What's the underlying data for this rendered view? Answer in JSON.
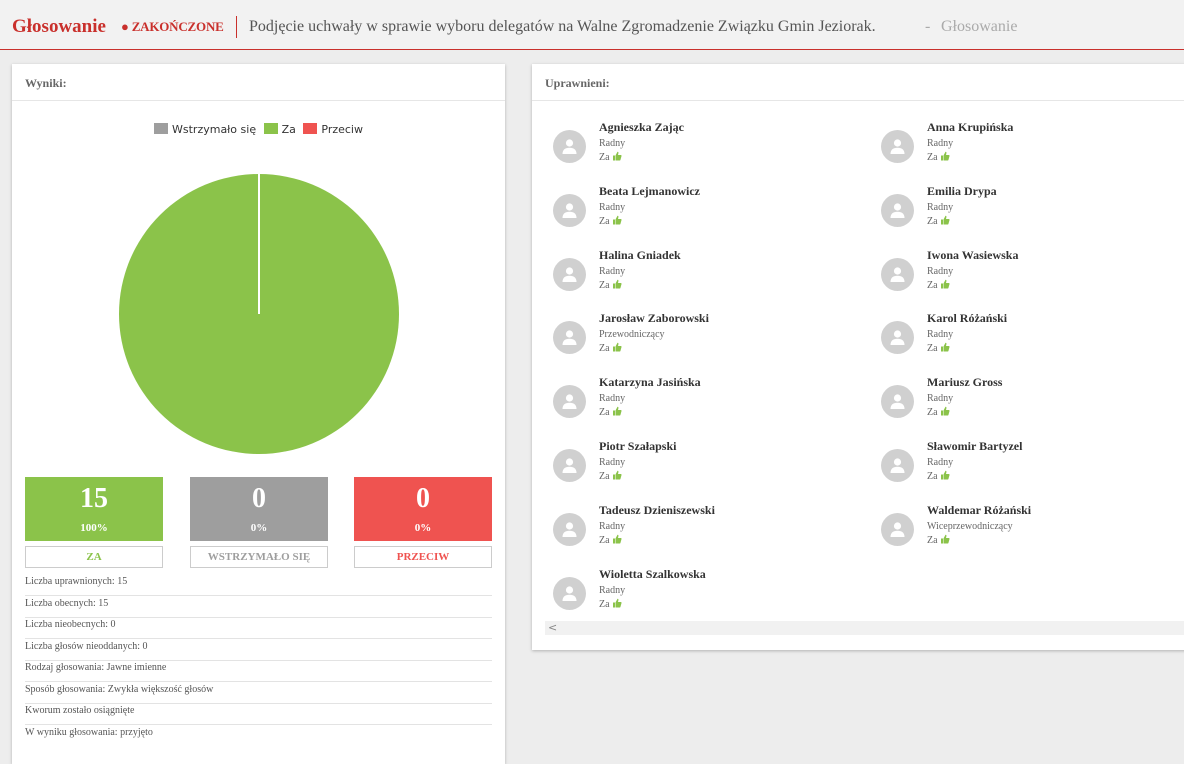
{
  "header": {
    "title": "Głosowanie",
    "status": "● ZAKOŃCZONE",
    "subject": "Podjęcie uchwały w sprawie wyboru delegatów na Walne Zgromadzenie Związku Gmin Jeziorak.",
    "separator": "-",
    "breadcrumb": "Głosowanie"
  },
  "results": {
    "heading": "Wyniki:",
    "legend": [
      {
        "label": "Wstrzymało się",
        "color": "#9e9e9e"
      },
      {
        "label": "Za",
        "color": "#8bc34a"
      },
      {
        "label": "Przeciw",
        "color": "#ef5350"
      }
    ],
    "boxes": [
      {
        "count": "15",
        "percent": "100%",
        "label": "ZA",
        "color": "#8bc34a"
      },
      {
        "count": "0",
        "percent": "0%",
        "label": "WSTRZYMAŁO SIĘ",
        "color": "#9e9e9e"
      },
      {
        "count": "0",
        "percent": "0%",
        "label": "PRZECIW",
        "color": "#ef5350"
      }
    ],
    "info": [
      "Liczba uprawnionych: 15",
      "Liczba obecnych: 15",
      "Liczba nieobecnych: 0",
      "Liczba głosów nieoddanych: 0",
      "Rodzaj głosowania: Jawne imienne",
      "Sposób głosowania: Zwykła większość głosów",
      "Kworum zostało osiągnięte",
      "W wyniku głosowania: przyjęto"
    ]
  },
  "chart_data": {
    "type": "pie",
    "categories": [
      "Wstrzymało się",
      "Za",
      "Przeciw"
    ],
    "values": [
      0,
      15,
      0
    ],
    "colors": [
      "#9e9e9e",
      "#8bc34a",
      "#ef5350"
    ],
    "legend_position": "top"
  },
  "eligible": {
    "heading": "Uprawnieni:",
    "voters": [
      {
        "name": "Agnieszka Zając",
        "role": "Radny",
        "vote": "Za"
      },
      {
        "name": "Anna Krupińska",
        "role": "Radny",
        "vote": "Za"
      },
      {
        "name": "Beata Lejmanowicz",
        "role": "Radny",
        "vote": "Za"
      },
      {
        "name": "Emilia Drypa",
        "role": "Radny",
        "vote": "Za"
      },
      {
        "name": "Halina Gniadek",
        "role": "Radny",
        "vote": "Za"
      },
      {
        "name": "Iwona Wasiewska",
        "role": "Radny",
        "vote": "Za"
      },
      {
        "name": "Jarosław Zaborowski",
        "role": "Przewodniczący",
        "vote": "Za"
      },
      {
        "name": "Karol Różański",
        "role": "Radny",
        "vote": "Za"
      },
      {
        "name": "Katarzyna Jasińska",
        "role": "Radny",
        "vote": "Za"
      },
      {
        "name": "Mariusz Gross",
        "role": "Radny",
        "vote": "Za"
      },
      {
        "name": "Piotr Szałapski",
        "role": "Radny",
        "vote": "Za"
      },
      {
        "name": "Sławomir Bartyzel",
        "role": "Radny",
        "vote": "Za"
      },
      {
        "name": "Tadeusz Dzieniszewski",
        "role": "Radny",
        "vote": "Za"
      },
      {
        "name": "Waldemar Różański",
        "role": "Wiceprzewodniczący",
        "vote": "Za"
      },
      {
        "name": "Wioletta Szalkowska",
        "role": "Radny",
        "vote": "Za"
      }
    ],
    "scroll_arrow": "<"
  },
  "icons": {
    "avatar": "user-silhouette-icon",
    "vote": "thumbs-up-icon"
  }
}
